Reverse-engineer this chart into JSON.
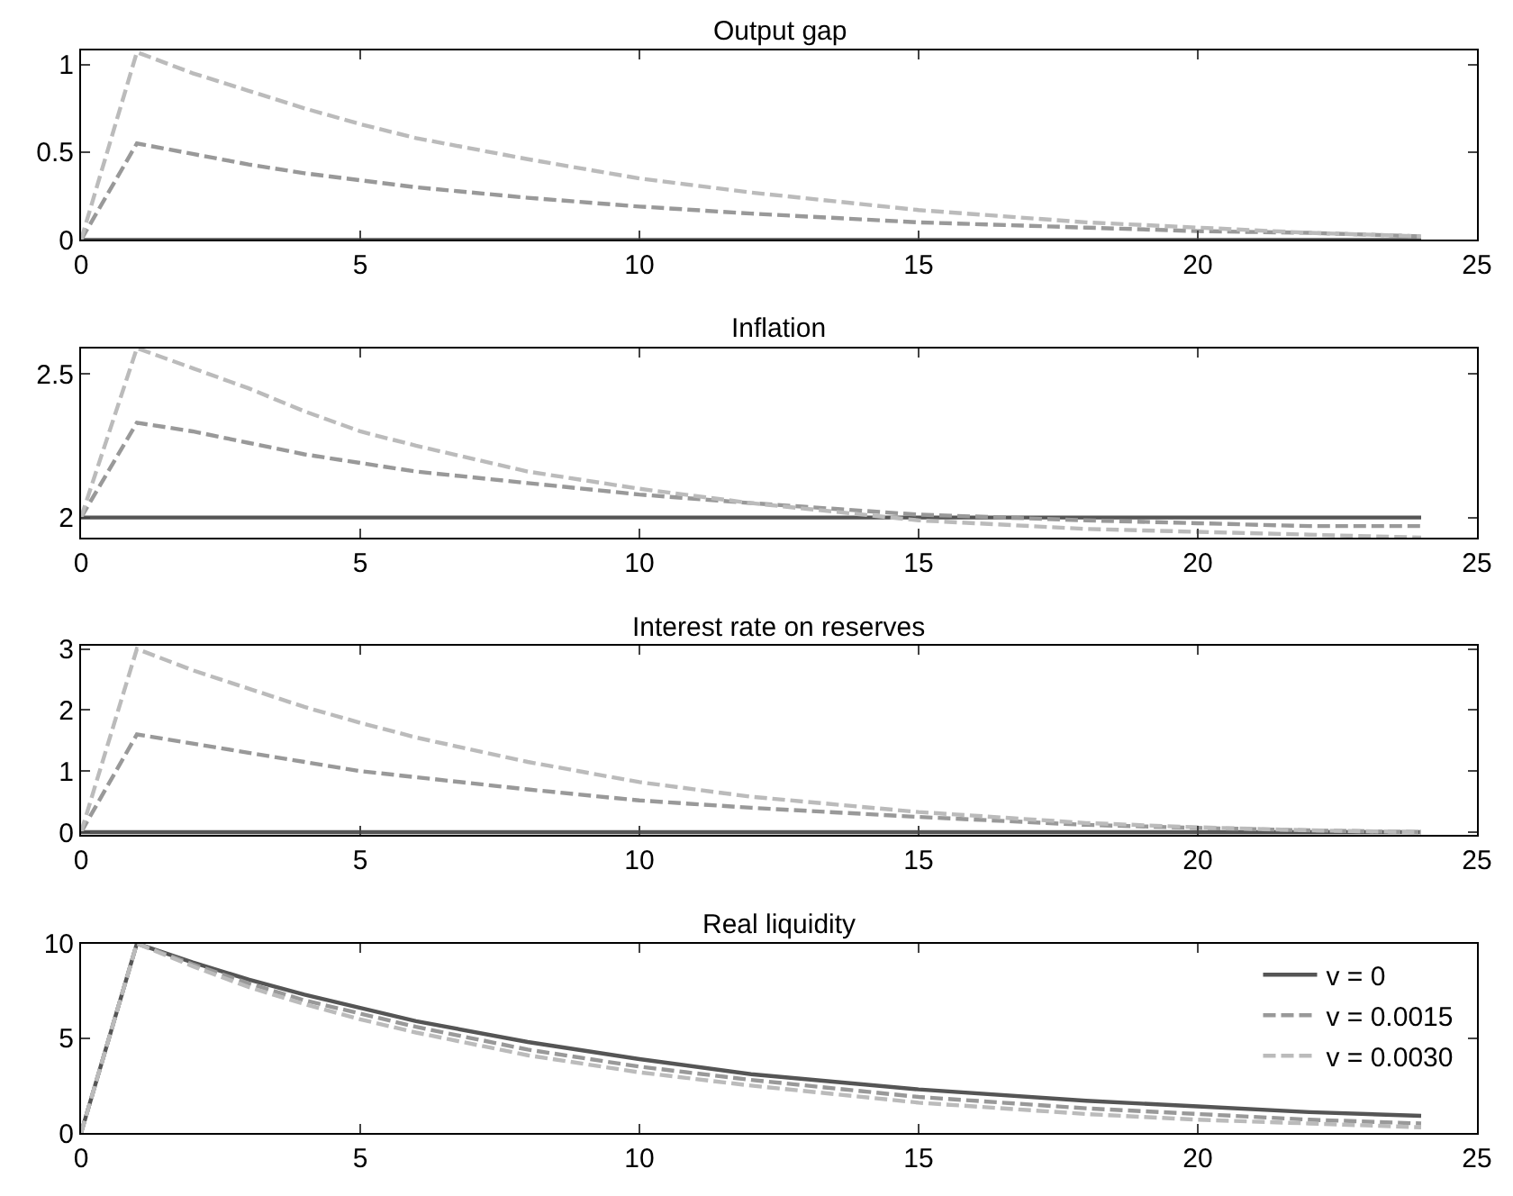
{
  "chart_data": [
    {
      "type": "line",
      "title": "Output gap",
      "x": [
        0,
        1,
        2,
        3,
        4,
        5,
        6,
        8,
        10,
        12,
        15,
        18,
        20,
        22,
        24
      ],
      "xlim": [
        0,
        25
      ],
      "xticks": [
        0,
        5,
        10,
        15,
        20,
        25
      ],
      "ylim": [
        0,
        1.08
      ],
      "yticks": [
        0,
        0.5,
        1
      ],
      "legend": false,
      "series": [
        {
          "color": "#555555",
          "line_style": "solid",
          "values": [
            0,
            0,
            0,
            0,
            0,
            0,
            0,
            0,
            0,
            0,
            0,
            0,
            0,
            0,
            0
          ]
        },
        {
          "color": "#999999",
          "line_style": "dashed",
          "values": [
            0,
            0.55,
            0.49,
            0.43,
            0.38,
            0.34,
            0.3,
            0.24,
            0.19,
            0.15,
            0.1,
            0.07,
            0.05,
            0.04,
            0.02
          ]
        },
        {
          "color": "#bbbbbb",
          "line_style": "dashed",
          "values": [
            0,
            1.07,
            0.95,
            0.85,
            0.75,
            0.66,
            0.58,
            0.46,
            0.35,
            0.27,
            0.17,
            0.1,
            0.07,
            0.04,
            0.02
          ]
        }
      ]
    },
    {
      "type": "line",
      "title": "Inflation",
      "x": [
        0,
        1,
        2,
        3,
        4,
        5,
        6,
        8,
        10,
        12,
        15,
        18,
        20,
        22,
        24
      ],
      "xlim": [
        0,
        25
      ],
      "xticks": [
        0,
        5,
        10,
        15,
        20,
        25
      ],
      "ylim": [
        1.93,
        2.59
      ],
      "yticks": [
        2,
        {
          "value": 2.5,
          "label": "2.5"
        }
      ],
      "legend": false,
      "series": [
        {
          "color": "#555555",
          "line_style": "solid",
          "values": [
            2,
            2,
            2,
            2,
            2,
            2,
            2,
            2,
            2,
            2,
            2,
            2,
            2,
            2,
            2
          ]
        },
        {
          "color": "#999999",
          "line_style": "dashed",
          "values": [
            2,
            2.33,
            2.3,
            2.26,
            2.22,
            2.19,
            2.16,
            2.12,
            2.08,
            2.05,
            2.01,
            1.99,
            1.98,
            1.97,
            1.97
          ]
        },
        {
          "color": "#bbbbbb",
          "line_style": "dashed",
          "values": [
            2,
            2.59,
            2.52,
            2.45,
            2.37,
            2.3,
            2.25,
            2.16,
            2.1,
            2.05,
            1.99,
            1.96,
            1.95,
            1.94,
            1.93
          ]
        }
      ]
    },
    {
      "type": "line",
      "title": "Interest rate on reserves",
      "x": [
        0,
        1,
        2,
        3,
        4,
        5,
        6,
        8,
        10,
        12,
        15,
        18,
        20,
        22,
        24
      ],
      "xlim": [
        0,
        25
      ],
      "xticks": [
        0,
        5,
        10,
        15,
        20,
        25
      ],
      "ylim": [
        -0.05,
        3.05
      ],
      "yticks": [
        0,
        1,
        2,
        3
      ],
      "legend": false,
      "series": [
        {
          "color": "#555555",
          "line_style": "solid",
          "values": [
            0,
            0,
            0,
            0,
            0,
            0,
            0,
            0,
            0,
            0,
            0,
            0,
            0,
            0,
            0
          ]
        },
        {
          "color": "#999999",
          "line_style": "dashed",
          "values": [
            0,
            1.6,
            1.45,
            1.3,
            1.15,
            1.0,
            0.9,
            0.7,
            0.52,
            0.4,
            0.25,
            0.12,
            0.07,
            0.03,
            0
          ]
        },
        {
          "color": "#bbbbbb",
          "line_style": "dashed",
          "values": [
            0,
            3.0,
            2.65,
            2.35,
            2.05,
            1.79,
            1.55,
            1.15,
            0.82,
            0.58,
            0.33,
            0.15,
            0.08,
            0.03,
            0
          ]
        }
      ]
    },
    {
      "type": "line",
      "title": "Real liquidity",
      "x": [
        0,
        1,
        2,
        3,
        4,
        5,
        6,
        8,
        10,
        12,
        15,
        18,
        20,
        22,
        24
      ],
      "xlim": [
        0,
        25
      ],
      "xticks": [
        0,
        5,
        10,
        15,
        20,
        25
      ],
      "ylim": [
        0,
        10
      ],
      "yticks": [
        0,
        5,
        10
      ],
      "legend": "top right",
      "series": [
        {
          "name": "v = 0",
          "color": "#555555",
          "line_style": "solid",
          "values": [
            0,
            10,
            9.0,
            8.1,
            7.3,
            6.6,
            5.9,
            4.8,
            3.9,
            3.1,
            2.3,
            1.7,
            1.4,
            1.1,
            0.9
          ]
        },
        {
          "name": "v = 0.0015",
          "color": "#999999",
          "line_style": "dashed",
          "values": [
            0,
            10,
            8.9,
            7.9,
            7.0,
            6.3,
            5.6,
            4.4,
            3.5,
            2.8,
            1.9,
            1.3,
            1.0,
            0.7,
            0.5
          ]
        },
        {
          "name": "v = 0.0030",
          "color": "#bbbbbb",
          "line_style": "dashed",
          "values": [
            0,
            10,
            8.8,
            7.7,
            6.8,
            6.0,
            5.3,
            4.1,
            3.2,
            2.5,
            1.6,
            1.0,
            0.7,
            0.5,
            0.3
          ]
        }
      ]
    }
  ]
}
